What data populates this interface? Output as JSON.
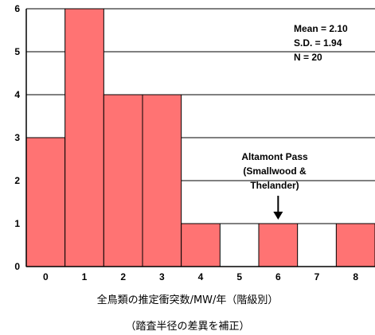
{
  "chart_data": {
    "type": "bar",
    "categories": [
      "0",
      "1",
      "2",
      "3",
      "4",
      "5",
      "6",
      "7",
      "8"
    ],
    "values": [
      3,
      6,
      4,
      4,
      1,
      0,
      1,
      0,
      1
    ],
    "ylim": [
      0,
      6
    ],
    "yticks": [
      "0",
      "1",
      "2",
      "3",
      "4",
      "5",
      "6"
    ],
    "xlabel": "全鳥類の推定衝突数/MW/年（階級別）",
    "subtitle": "（踏査半径の差異を補正）",
    "bar_color": "#ff7373",
    "stats": [
      "Mean = 2.10",
      "S.D. = 1.94",
      "N = 20"
    ],
    "annotation": {
      "lines": [
        "Altamont Pass",
        "(Smallwood &",
        "Thelander)"
      ],
      "target_category": "6"
    }
  }
}
